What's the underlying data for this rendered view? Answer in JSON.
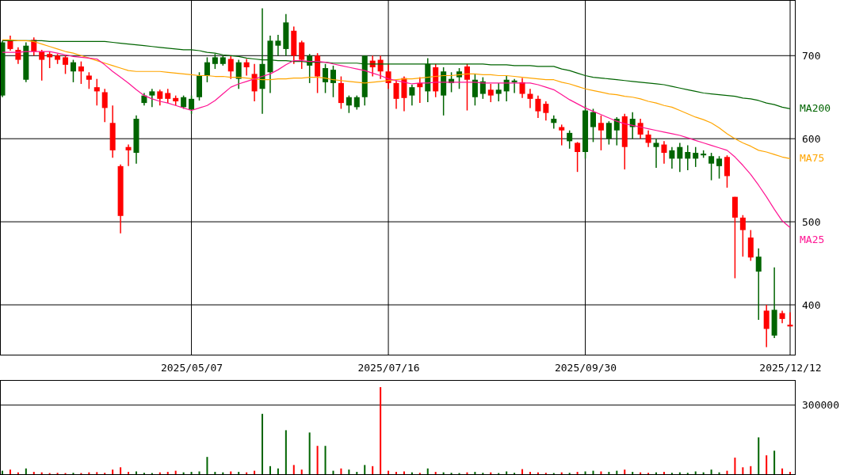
{
  "chart_data": [
    {
      "type": "candlestick",
      "categories": [
        null,
        null,
        null,
        null,
        null,
        null,
        null,
        null,
        null,
        null,
        null,
        null,
        null,
        null,
        null,
        null,
        null,
        null,
        null,
        null,
        null,
        null,
        null,
        null,
        "2025/05/07",
        null,
        null,
        null,
        null,
        null,
        null,
        null,
        null,
        null,
        null,
        null,
        null,
        null,
        null,
        null,
        null,
        null,
        null,
        null,
        null,
        null,
        null,
        null,
        null,
        "2025/07/16",
        null,
        null,
        null,
        null,
        null,
        null,
        null,
        null,
        null,
        null,
        null,
        null,
        null,
        null,
        null,
        null,
        null,
        null,
        null,
        null,
        null,
        null,
        null,
        null,
        "2025/09/30",
        null,
        null,
        null,
        null,
        null,
        null,
        null,
        null,
        null,
        null,
        null,
        null,
        null,
        null,
        null,
        null,
        null,
        null,
        null,
        null,
        null,
        null,
        null,
        null,
        null,
        "2025/12/12"
      ],
      "ohlc": [
        [
          652,
          718,
          650,
          716
        ],
        [
          719,
          724,
          706,
          708
        ],
        [
          707,
          710,
          690,
          695
        ],
        [
          671,
          716,
          668,
          712
        ],
        [
          719,
          722,
          700,
          705
        ],
        [
          705,
          707,
          670,
          695
        ],
        [
          702,
          705,
          685,
          698
        ],
        [
          700,
          702,
          690,
          695
        ],
        [
          698,
          700,
          678,
          689
        ],
        [
          681,
          695,
          668,
          692
        ],
        [
          687,
          693,
          666,
          681
        ],
        [
          676,
          680,
          660,
          671
        ],
        [
          662,
          672,
          640,
          657
        ],
        [
          656,
          660,
          620,
          637
        ],
        [
          619,
          640,
          577,
          586
        ],
        [
          567,
          569,
          486,
          507
        ],
        [
          590,
          593,
          567,
          586
        ],
        [
          583,
          628,
          570,
          624
        ],
        [
          643,
          655,
          640,
          652
        ],
        [
          652,
          660,
          638,
          657
        ],
        [
          657,
          659,
          640,
          648
        ],
        [
          655,
          660,
          643,
          648
        ],
        [
          649,
          652,
          640,
          645
        ],
        [
          638,
          652,
          636,
          650
        ],
        [
          635,
          652,
          630,
          648
        ],
        [
          650,
          680,
          646,
          676
        ],
        [
          676,
          698,
          668,
          692
        ],
        [
          690,
          702,
          684,
          698
        ],
        [
          690,
          700,
          688,
          698
        ],
        [
          696,
          700,
          672,
          681
        ],
        [
          672,
          695,
          660,
          692
        ],
        [
          692,
          696,
          676,
          686
        ],
        [
          678,
          690,
          645,
          657
        ],
        [
          660,
          757,
          630,
          690
        ],
        [
          680,
          724,
          655,
          718
        ],
        [
          712,
          725,
          700,
          718
        ],
        [
          708,
          750,
          700,
          740
        ],
        [
          730,
          735,
          690,
          700
        ],
        [
          716,
          718,
          684,
          695
        ],
        [
          688,
          702,
          667,
          700
        ],
        [
          700,
          703,
          655,
          675
        ],
        [
          668,
          690,
          655,
          685
        ],
        [
          667,
          688,
          650,
          683
        ],
        [
          667,
          675,
          636,
          643
        ],
        [
          640,
          652,
          631,
          650
        ],
        [
          638,
          652,
          635,
          650
        ],
        [
          650,
          700,
          640,
          700
        ],
        [
          694,
          700,
          675,
          686
        ],
        [
          695,
          700,
          672,
          681
        ],
        [
          681,
          690,
          660,
          667
        ],
        [
          667,
          670,
          636,
          648
        ],
        [
          673,
          675,
          633,
          649
        ],
        [
          652,
          665,
          640,
          662
        ],
        [
          667,
          674,
          643,
          662
        ],
        [
          657,
          697,
          644,
          690
        ],
        [
          686,
          690,
          650,
          657
        ],
        [
          652,
          686,
          628,
          681
        ],
        [
          667,
          680,
          656,
          672
        ],
        [
          674,
          685,
          660,
          681
        ],
        [
          687,
          690,
          634,
          671
        ],
        [
          650,
          678,
          640,
          671
        ],
        [
          654,
          674,
          648,
          669
        ],
        [
          659,
          666,
          644,
          652
        ],
        [
          654,
          667,
          645,
          659
        ],
        [
          657,
          676,
          645,
          671
        ],
        [
          668,
          672,
          655,
          670
        ],
        [
          668,
          673,
          649,
          654
        ],
        [
          654,
          660,
          637,
          648
        ],
        [
          648,
          652,
          625,
          633
        ],
        [
          642,
          645,
          622,
          631
        ],
        [
          619,
          628,
          612,
          624
        ],
        [
          614,
          617,
          592,
          610
        ],
        [
          597,
          610,
          588,
          607
        ],
        [
          595,
          596,
          560,
          584
        ],
        [
          584,
          640,
          576,
          634
        ],
        [
          614,
          636,
          596,
          632
        ],
        [
          619,
          628,
          586,
          610
        ],
        [
          600,
          621,
          593,
          619
        ],
        [
          610,
          626,
          592,
          624
        ],
        [
          627,
          630,
          563,
          590
        ],
        [
          614,
          632,
          600,
          624
        ],
        [
          619,
          624,
          600,
          605
        ],
        [
          605,
          610,
          590,
          595
        ],
        [
          590,
          600,
          565,
          595
        ],
        [
          593,
          597,
          570,
          583
        ],
        [
          576,
          590,
          564,
          586
        ],
        [
          576,
          595,
          560,
          590
        ],
        [
          576,
          592,
          562,
          584
        ],
        [
          576,
          590,
          566,
          583
        ],
        [
          580,
          586,
          577,
          582
        ],
        [
          570,
          583,
          550,
          579
        ],
        [
          567,
          579,
          552,
          576
        ],
        [
          578,
          580,
          541,
          555
        ],
        [
          530,
          530,
          432,
          505
        ],
        [
          505,
          508,
          458,
          490
        ],
        [
          481,
          490,
          453,
          457
        ],
        [
          440,
          468,
          382,
          458
        ],
        [
          393,
          400,
          349,
          371
        ],
        [
          363,
          445,
          360,
          394
        ],
        [
          390,
          393,
          378,
          383
        ],
        [
          376,
          391,
          374,
          374
        ]
      ],
      "series": [
        {
          "name": "MA200",
          "type": "line",
          "color": "#006400",
          "values": [
            718,
            718,
            718,
            718,
            718,
            718,
            717,
            717,
            717,
            717,
            717,
            717,
            717,
            717,
            716,
            715,
            714,
            713,
            712,
            711,
            710,
            709,
            708,
            707,
            707,
            706,
            704,
            703,
            701,
            700,
            699,
            697,
            696,
            695,
            695,
            694,
            694,
            693,
            693,
            692,
            692,
            692,
            691,
            691,
            691,
            691,
            690,
            690,
            690,
            690,
            690,
            690,
            690,
            690,
            690,
            690,
            690,
            690,
            690,
            690,
            690,
            690,
            689,
            689,
            689,
            688,
            688,
            688,
            687,
            687,
            687,
            684,
            682,
            679,
            676,
            674,
            673,
            672,
            671,
            670,
            669,
            668,
            667,
            666,
            665,
            663,
            661,
            659,
            657,
            655,
            654,
            653,
            652,
            651,
            649,
            648,
            646,
            643,
            641,
            638,
            636
          ]
        },
        {
          "name": "MA75",
          "type": "line",
          "color": "#ffa500",
          "values": [
            719,
            719,
            718,
            718,
            717,
            714,
            711,
            708,
            705,
            703,
            700,
            697,
            694,
            691,
            688,
            685,
            682,
            681,
            681,
            681,
            681,
            680,
            679,
            678,
            677,
            676,
            676,
            675,
            675,
            674,
            674,
            673,
            672,
            671,
            671,
            672,
            672,
            673,
            673,
            674,
            674,
            673,
            671,
            670,
            669,
            668,
            667,
            668,
            669,
            670,
            671,
            672,
            672,
            673,
            674,
            675,
            676,
            676,
            677,
            678,
            678,
            677,
            677,
            676,
            676,
            675,
            674,
            673,
            672,
            671,
            671,
            668,
            666,
            663,
            660,
            658,
            656,
            654,
            653,
            651,
            650,
            648,
            645,
            643,
            640,
            638,
            634,
            630,
            626,
            623,
            619,
            613,
            606,
            600,
            595,
            591,
            586,
            584,
            581,
            578,
            576
          ]
        },
        {
          "name": "MA25",
          "type": "line",
          "color": "#ff1493",
          "values": [
            704,
            704,
            704,
            705,
            705,
            705,
            705,
            703,
            701,
            699,
            698,
            697,
            696,
            689,
            681,
            674,
            667,
            659,
            652,
            648,
            645,
            643,
            640,
            637,
            634,
            637,
            640,
            646,
            654,
            662,
            666,
            669,
            672,
            675,
            678,
            683,
            689,
            694,
            694,
            693,
            693,
            692,
            690,
            688,
            686,
            684,
            682,
            679,
            676,
            672,
            670,
            668,
            666,
            667,
            667,
            668,
            668,
            668,
            668,
            668,
            668,
            667,
            667,
            667,
            667,
            667,
            667,
            667,
            665,
            662,
            659,
            653,
            647,
            642,
            637,
            633,
            629,
            625,
            621,
            618,
            616,
            614,
            612,
            610,
            608,
            606,
            604,
            601,
            598,
            595,
            592,
            589,
            586,
            578,
            568,
            557,
            544,
            530,
            515,
            501,
            493
          ]
        }
      ],
      "ylim": [
        340,
        767
      ],
      "yticks": [
        400,
        500,
        600,
        700
      ],
      "grid": true,
      "tick_labels": "y"
    },
    {
      "type": "bar",
      "categories": [
        null,
        null,
        null,
        null,
        null,
        null,
        null,
        null,
        null,
        null,
        null,
        null,
        null,
        null,
        null,
        null,
        null,
        null,
        null,
        null,
        null,
        null,
        null,
        null,
        "2025/05/07",
        null,
        null,
        null,
        null,
        null,
        null,
        null,
        null,
        null,
        null,
        null,
        null,
        null,
        null,
        null,
        null,
        null,
        null,
        null,
        null,
        null,
        null,
        null,
        null,
        "2025/07/16",
        null,
        null,
        null,
        null,
        null,
        null,
        null,
        null,
        null,
        null,
        null,
        null,
        null,
        null,
        null,
        null,
        null,
        null,
        null,
        null,
        null,
        null,
        null,
        null,
        "2025/09/30",
        null,
        null,
        null,
        null,
        null,
        null,
        null,
        null,
        null,
        null,
        null,
        null,
        null,
        null,
        null,
        null,
        null,
        null,
        null,
        null,
        null,
        null,
        null,
        null,
        null,
        "2025/12/12"
      ],
      "values": [
        15000,
        20000,
        8000,
        25000,
        10000,
        8000,
        5000,
        6000,
        5000,
        6000,
        5000,
        8000,
        9000,
        6000,
        20000,
        30000,
        10000,
        12000,
        6000,
        5000,
        8000,
        10000,
        15000,
        8000,
        10000,
        12000,
        75000,
        10000,
        8000,
        12000,
        10000,
        8000,
        15000,
        262000,
        35000,
        25000,
        191000,
        40000,
        20000,
        181000,
        123000,
        123000,
        15000,
        25000,
        20000,
        10000,
        40000,
        35000,
        378000,
        15000,
        10000,
        12000,
        8000,
        6000,
        25000,
        10000,
        8000,
        6000,
        5000,
        8000,
        10000,
        6000,
        8000,
        5000,
        12000,
        6000,
        22000,
        10000,
        8000,
        6000,
        5000,
        8000,
        6000,
        10000,
        12000,
        15000,
        12000,
        10000,
        15000,
        20000,
        10000,
        8000,
        6000,
        8000,
        10000,
        6000,
        8000,
        6000,
        12000,
        8000,
        20000,
        8000,
        15000,
        72000,
        30000,
        35000,
        160000,
        82000,
        102000,
        25000,
        10000
      ],
      "colors": [
        "#006400",
        "#ff0000",
        "#ff0000",
        "#006400",
        "#ff0000",
        "#ff0000",
        "#ff0000",
        "#ff0000",
        "#ff0000",
        "#006400",
        "#ff0000",
        "#ff0000",
        "#ff0000",
        "#ff0000",
        "#ff0000",
        "#ff0000",
        "#ff0000",
        "#006400",
        "#006400",
        "#006400",
        "#ff0000",
        "#ff0000",
        "#ff0000",
        "#006400",
        "#006400",
        "#006400",
        "#006400",
        "#006400",
        "#006400",
        "#ff0000",
        "#006400",
        "#ff0000",
        "#ff0000",
        "#006400",
        "#006400",
        "#006400",
        "#006400",
        "#ff0000",
        "#ff0000",
        "#006400",
        "#ff0000",
        "#006400",
        "#006400",
        "#ff0000",
        "#006400",
        "#006400",
        "#006400",
        "#ff0000",
        "#ff0000",
        "#ff0000",
        "#ff0000",
        "#ff0000",
        "#006400",
        "#ff0000",
        "#006400",
        "#ff0000",
        "#006400",
        "#006400",
        "#006400",
        "#ff0000",
        "#006400",
        "#006400",
        "#ff0000",
        "#006400",
        "#006400",
        "#006400",
        "#ff0000",
        "#ff0000",
        "#ff0000",
        "#ff0000",
        "#006400",
        "#ff0000",
        "#006400",
        "#ff0000",
        "#006400",
        "#006400",
        "#ff0000",
        "#006400",
        "#006400",
        "#ff0000",
        "#006400",
        "#ff0000",
        "#ff0000",
        "#006400",
        "#ff0000",
        "#006400",
        "#006400",
        "#006400",
        "#006400",
        "#006400",
        "#006400",
        "#006400",
        "#ff0000",
        "#ff0000",
        "#ff0000",
        "#ff0000",
        "#006400",
        "#ff0000",
        "#006400",
        "#ff0000",
        "#ff0000"
      ],
      "ylim": [
        0,
        409000
      ],
      "yticks": [
        300000
      ],
      "grid": "y"
    }
  ]
}
